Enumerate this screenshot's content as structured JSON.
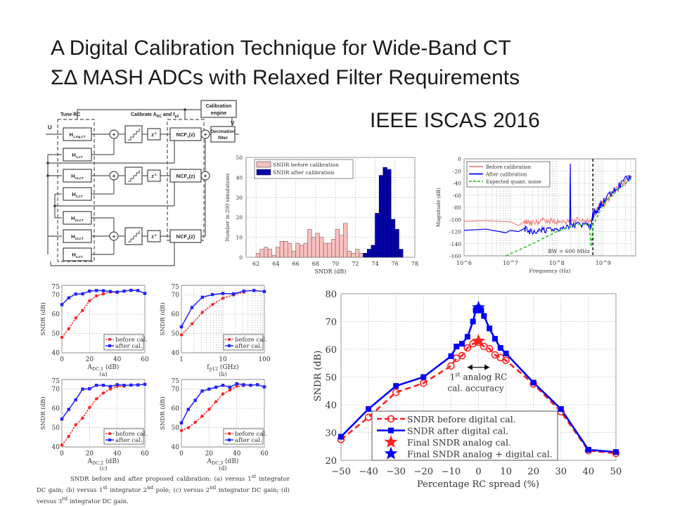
{
  "slide": {
    "title_line1": "A Digital Calibration Technique for Wide-Band CT",
    "title_line2": "ΣΔ MASH  ADCs with Relaxed Filter Requirements",
    "venue": "IEEE ISCAS 2016"
  },
  "block_diagram": {
    "labels": {
      "tune_rc": "Tune RC",
      "calibrate": "Calibrate A",
      "calibrate_sub": "DC",
      "calibrate_and": " and f",
      "calibrate_sub2": "p2",
      "cal_engine_1": "Calibration",
      "cal_engine_2": "engine",
      "decim_1": "Decimation",
      "decim_2": "filter",
      "input": "U",
      "output": "V",
      "v1": "V",
      "v1_sub": "1",
      "v2": "V",
      "v2_sub": "2",
      "v3": "V",
      "v3_sub": "3",
      "delay": "z",
      "delay_sup": "-1",
      "plus": "+"
    },
    "filters": [
      {
        "main": "H",
        "sub": "1,sig,CT"
      },
      {
        "main": "H",
        "sub": "1,CT"
      },
      {
        "main": "H",
        "sub": "12,CT"
      },
      {
        "main": "H",
        "sub": "2,CT"
      },
      {
        "main": "H",
        "sub": "23,CT"
      },
      {
        "main": "H",
        "sub": "13,CT"
      },
      {
        "main": "H",
        "sub": "3,CT"
      }
    ],
    "ncf": [
      {
        "main": "NCF",
        "sub": "1",
        "tail": "(z)"
      },
      {
        "main": "NCF",
        "sub": "2",
        "tail": "(z)"
      },
      {
        "main": "NCF",
        "sub": "3",
        "tail": "(z)"
      }
    ]
  },
  "caption": {
    "p1": "SNDR before and after proposed calibration: (a) versus 1",
    "s1": "st",
    "p2": " integrator DC gain; (b) versus 1",
    "s2": "st",
    "p3": " integrator 2",
    "s3": "nd",
    "p4": " pole; (c) versus 2",
    "s4": "nd",
    "p5": " integrator DC gain; (d) versus 3",
    "s5": "rd",
    "p6": " integrator DC gain."
  },
  "chart_data": [
    {
      "id": "histogram",
      "type": "bar",
      "title": "",
      "xlabel": "SNDR (dB)",
      "ylabel": "Number in 200 simulations",
      "xlim": [
        61,
        78
      ],
      "ylim": [
        0,
        50
      ],
      "xticks": [
        62,
        64,
        66,
        68,
        70,
        72,
        74,
        76,
        78
      ],
      "yticks": [
        0,
        10,
        20,
        30,
        40,
        50
      ],
      "bin_width": 0.4,
      "grid": true,
      "legend_position": "top-left",
      "series": [
        {
          "name": "SNDR before calibration",
          "color": "#f9c0c0",
          "bin_starts": [
            62.0,
            62.4,
            62.8,
            63.2,
            63.6,
            64.0,
            64.4,
            64.8,
            65.2,
            65.6,
            66.0,
            66.4,
            66.8,
            67.2,
            67.6,
            68.0,
            68.4,
            68.8,
            69.2,
            69.6,
            70.0,
            70.4,
            70.8,
            71.2,
            71.6,
            72.0,
            72.4,
            72.8
          ],
          "values": [
            2,
            4,
            5,
            4,
            1,
            5,
            8,
            8,
            7,
            3,
            7,
            6,
            7,
            14,
            10,
            12,
            10,
            7,
            7,
            9,
            14,
            11,
            17,
            3,
            2,
            4,
            2,
            1
          ]
        },
        {
          "name": "SNDR after calibration",
          "color": "#0000aa",
          "bin_starts": [
            72.8,
            73.2,
            73.6,
            74.0,
            74.4,
            74.8,
            75.2,
            75.6,
            76.0,
            76.4
          ],
          "values": [
            2,
            4,
            6,
            22,
            41,
            45,
            44,
            19,
            14,
            4
          ]
        }
      ]
    },
    {
      "id": "spectrum",
      "type": "line",
      "xlabel": "Frequency (Hz)",
      "ylabel": "Magnitude (dB)",
      "xscale": "log",
      "xlim": [
        1000000,
        5000000000
      ],
      "ylim": [
        -160,
        0
      ],
      "xticks": [
        "10^6",
        "10^7",
        "10^8",
        "10^9"
      ],
      "yticks": [
        0,
        -20,
        -40,
        -60,
        -80,
        -100,
        -120,
        -140,
        -160
      ],
      "grid": true,
      "legend_position": "top-left",
      "annotation": "BW = 600 MHz",
      "bw_marker_hz": 600000000,
      "series": [
        {
          "name": "Before calibration",
          "color": "#f08080",
          "x": [
            1000000.0,
            3000000.0,
            10000000.0,
            15000000.0,
            20000000.0,
            30000000.0,
            50000000.0,
            100000000.0,
            200000000.0,
            400000000.0,
            550000000.0,
            600000000.0,
            800000000.0,
            1200000000.0,
            2000000000.0,
            4000000000.0
          ],
          "y": [
            -103,
            -102,
            -104,
            -110,
            -103,
            -107,
            -101,
            -104,
            -103,
            -100,
            -104,
            -95,
            -80,
            -68,
            -50,
            -30
          ]
        },
        {
          "name": "After calibration",
          "color": "#0000ff",
          "x": [
            1000000.0,
            3000000.0,
            8000000.0,
            10000000.0,
            15000000.0,
            20000000.0,
            30000000.0,
            50000000.0,
            100000000.0,
            190000000.0,
            195000000.0,
            200000000.0,
            400000000.0,
            550000000.0,
            600000000.0,
            800000000.0,
            1200000000.0,
            2000000000.0,
            4000000000.0
          ],
          "y": [
            -118,
            -116,
            -122,
            -118,
            -120,
            -115,
            -122,
            -118,
            -117,
            -112,
            -8,
            -110,
            -108,
            -112,
            -92,
            -80,
            -65,
            -48,
            -28
          ]
        },
        {
          "name": "Expected quant. noise",
          "color": "#22cc22",
          "dashed": true,
          "x": [
            8000000.0,
            30000000.0,
            100000000.0,
            300000000.0,
            500000000.0,
            550000000.0,
            600000000.0,
            1000000000.0,
            2000000000.0,
            4000000000.0
          ],
          "y": [
            -160,
            -140,
            -120,
            -108,
            -108,
            -145,
            -110,
            -75,
            -52,
            -33
          ]
        }
      ]
    },
    {
      "id": "subplot-a",
      "type": "line",
      "label": "(a)",
      "xlabel": "A",
      "xlabel_sub": "DC,1",
      "xlabel_tail": " (dB)",
      "ylabel": "SNDR (dB)",
      "xlim": [
        0,
        60
      ],
      "ylim": [
        40,
        75
      ],
      "xticks": [
        0,
        20,
        40,
        60
      ],
      "yticks": [
        40,
        50,
        60,
        70,
        75
      ],
      "grid": true,
      "legend_position": "bottom-right",
      "x": [
        0,
        5,
        10,
        15,
        20,
        25,
        30,
        35,
        40,
        45,
        50,
        55,
        60
      ],
      "series": [
        {
          "name": "before cal.",
          "color": "#ff2222",
          "dashed": true,
          "values": [
            48,
            52.5,
            58,
            62,
            67,
            69.5,
            70.5,
            71.5,
            71.3,
            null,
            null,
            null,
            null
          ]
        },
        {
          "name": "after cal.",
          "color": "#2222ff",
          "values": [
            65,
            68.5,
            70.5,
            70.6,
            72,
            72.3,
            72.2,
            71.8,
            71.5,
            72,
            72.4,
            72.3,
            70.8
          ]
        }
      ]
    },
    {
      "id": "subplot-b",
      "type": "line",
      "label": "(b)",
      "xlabel": "f",
      "xlabel_sub": "p12",
      "xlabel_tail": " (GHz)",
      "ylabel": "SNDR (dB)",
      "xscale": "log",
      "xlim": [
        1,
        100
      ],
      "ylim": [
        40,
        75
      ],
      "xticks": [
        1,
        10,
        100
      ],
      "yticks": [
        40,
        50,
        60,
        70,
        75
      ],
      "grid": true,
      "legend_position": "bottom-right",
      "x": [
        1,
        1.8,
        3.2,
        5.6,
        10,
        18,
        32,
        56,
        100
      ],
      "series": [
        {
          "name": "before cal.",
          "color": "#ff2222",
          "dashed": true,
          "values": [
            49.3,
            55,
            61,
            65,
            68.3,
            70,
            71.5,
            null,
            null
          ]
        },
        {
          "name": "after cal.",
          "color": "#2222ff",
          "values": [
            53.5,
            63.5,
            68.8,
            70.2,
            70.8,
            70.6,
            72,
            72.3,
            71.8
          ]
        }
      ]
    },
    {
      "id": "subplot-c",
      "type": "line",
      "label": "(c)",
      "xlabel": "A",
      "xlabel_sub": "DC,2",
      "xlabel_tail": " (dB)",
      "ylabel": "SNDR (dB)",
      "xlim": [
        0,
        60
      ],
      "ylim": [
        40,
        75
      ],
      "xticks": [
        0,
        20,
        40,
        60
      ],
      "yticks": [
        40,
        50,
        60,
        70,
        75
      ],
      "grid": true,
      "legend_position": "bottom-right",
      "x": [
        0,
        5,
        10,
        15,
        20,
        25,
        30,
        35,
        40,
        45,
        50,
        55,
        60
      ],
      "series": [
        {
          "name": "before cal.",
          "color": "#ff2222",
          "dashed": true,
          "values": [
            41,
            45.5,
            51.5,
            55,
            60.5,
            65,
            68,
            70,
            71.5,
            71.5,
            null,
            null,
            null
          ]
        },
        {
          "name": "after cal.",
          "color": "#2222ff",
          "values": [
            54.5,
            59.5,
            64.5,
            70,
            70.2,
            72,
            72,
            71.4,
            72.3,
            72,
            72.1,
            72.2,
            72.5
          ]
        }
      ]
    },
    {
      "id": "subplot-d",
      "type": "line",
      "label": "(d)",
      "xlabel": "A",
      "xlabel_sub": "DC,3",
      "xlabel_tail": " (dB)",
      "ylabel": "SNDR (dB)",
      "xlim": [
        0,
        60
      ],
      "ylim": [
        40,
        75
      ],
      "xticks": [
        0,
        20,
        40,
        60
      ],
      "yticks": [
        40,
        50,
        60,
        70,
        75
      ],
      "grid": true,
      "legend_position": "bottom-right",
      "x": [
        0,
        5,
        10,
        15,
        20,
        25,
        30,
        35,
        40,
        45,
        50,
        55,
        60
      ],
      "series": [
        {
          "name": "before cal.",
          "color": "#ff2222",
          "dashed": true,
          "values": [
            48.5,
            50,
            52.8,
            56,
            59.5,
            63.5,
            67.5,
            69.5,
            71.5,
            71.8,
            null,
            null,
            null
          ]
        },
        {
          "name": "after cal.",
          "color": "#2222ff",
          "values": [
            52.5,
            59.5,
            64.2,
            69,
            70,
            71,
            72,
            71,
            72.8,
            72.3,
            72,
            72.3,
            71.2
          ]
        }
      ]
    },
    {
      "id": "rc-spread",
      "type": "line",
      "xlabel": "Percentage RC spread (%)",
      "ylabel": "SNDR (dB)",
      "xlim": [
        -50,
        50
      ],
      "ylim": [
        20,
        80
      ],
      "xticks": [
        -50,
        -40,
        -30,
        -20,
        -10,
        0,
        10,
        20,
        30,
        40,
        50
      ],
      "yticks": [
        20,
        30,
        40,
        50,
        60,
        70,
        80
      ],
      "grid": true,
      "legend_position": "bottom-left",
      "annotation_line1": "1",
      "annotation_sup": "st",
      "annotation_line1_tail": " analog RC",
      "annotation_line2": "cal. accuracy",
      "series": [
        {
          "name": "SNDR before digital cal.",
          "color": "#ff2222",
          "dashed": true,
          "marker": "circle",
          "x": [
            -50,
            -40,
            -30,
            -20,
            -10,
            -8,
            -6,
            -4,
            -2,
            0,
            2,
            4,
            6,
            8,
            10,
            20,
            30,
            40,
            50
          ],
          "y": [
            27.5,
            35.5,
            44.5,
            47.8,
            54,
            56.8,
            57.7,
            60.5,
            62,
            62.5,
            61,
            60.2,
            58,
            57,
            56,
            47.5,
            37.5,
            23.5,
            22.5
          ]
        },
        {
          "name": "SNDR after digital cal.",
          "color": "#0000ff",
          "marker": "square",
          "x": [
            -50,
            -40,
            -30,
            -20,
            -10,
            -8,
            -6,
            -4,
            -2,
            -1,
            0,
            1,
            2,
            4,
            6,
            8,
            10,
            20,
            30,
            40,
            50
          ],
          "y": [
            28.5,
            38.5,
            46.8,
            50,
            57.5,
            61,
            62,
            64.5,
            70,
            74,
            75,
            74,
            72,
            67.5,
            63.8,
            60.5,
            58.5,
            48,
            38.5,
            23.8,
            23
          ]
        },
        {
          "name": "Final SNDR analog cal.",
          "color": "#ff2222",
          "marker": "star",
          "x": [
            0
          ],
          "y": [
            63
          ]
        },
        {
          "name": "Final SNDR analog + digital cal.",
          "color": "#0000ff",
          "marker": "star",
          "x": [
            0
          ],
          "y": [
            75
          ]
        }
      ]
    }
  ]
}
